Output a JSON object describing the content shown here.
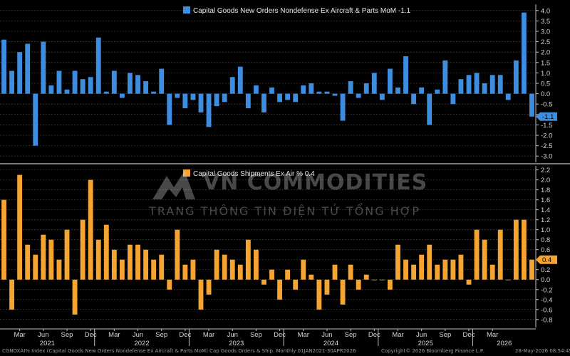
{
  "colors": {
    "background": "#000000",
    "top_series": "#3d8de0",
    "bottom_series": "#f5a431",
    "grid": "#3c3c3c",
    "text": "#d8d8d8"
  },
  "watermark": {
    "title": "VN COMMODITIES",
    "subtitle": "TRANG THÔNG TIN ĐIỆN TỬ TỔNG HỢP"
  },
  "footer": {
    "left": "CGNOXAI% Index (Capital Goods New Orders Nondefense Ex Aircraft & Parts MoM) Cap Goods Orders & Ship. Monthly 01JAN2021-30APR2026",
    "copyright": "Copyright© 2026 Bloomberg Finance L.P.",
    "timestamp": "28-May-2026 08:54:45"
  },
  "chart_data": {
    "type": "bar",
    "x_month_labels": [
      "Mar",
      "Jun",
      "Sep",
      "Dec",
      "Mar",
      "Jun",
      "Sep",
      "Dec",
      "Mar",
      "Jun",
      "Sep",
      "Dec",
      "Mar",
      "Jun",
      "Sep",
      "Dec",
      "Mar",
      "Jun",
      "Sep",
      "Dec",
      "Mar"
    ],
    "x_year_labels": [
      "2021",
      "2022",
      "2023",
      "2024",
      "2025",
      "2026"
    ],
    "panels": [
      {
        "series_name": "Capital Goods New Orders Nondefense Ex Aircraft & Parts MoM",
        "last_value_label": "-1.1",
        "badge_label": "-1.1",
        "ylim": [
          -3.3,
          4.3
        ],
        "yticks": [
          "4.0",
          "3.5",
          "3.0",
          "2.5",
          "2.0",
          "1.5",
          "1.0",
          "0.5",
          "0.0",
          "-0.5",
          "-1.0",
          "-1.5",
          "-2.0",
          "-2.5",
          "-3.0"
        ],
        "values": [
          2.6,
          1.1,
          2.0,
          2.4,
          -2.5,
          2.5,
          0.4,
          1.1,
          0.2,
          1.1,
          0.7,
          0.8,
          2.7,
          0.1,
          1.1,
          -0.2,
          1.0,
          0.9,
          0.6,
          0.1,
          1.2,
          -1.5,
          -0.2,
          -0.7,
          -0.3,
          -0.9,
          -1.6,
          -0.6,
          -0.4,
          0.8,
          1.3,
          -0.7,
          0.4,
          -0.9,
          0.3,
          -0.4,
          -0.3,
          -0.4,
          0.4,
          0.5,
          0.1,
          0.1,
          -0.1,
          -1.3,
          0.6,
          -0.2,
          0.5,
          1.0,
          -0.3,
          1.2,
          0.3,
          1.8,
          -0.5,
          0.3,
          -1.5,
          0.2,
          1.6,
          -0.5,
          0.7,
          0.9,
          1.0,
          0.5,
          0.9,
          0.9,
          -0.3,
          1.6,
          3.9,
          -1.1
        ]
      },
      {
        "series_name": "Capital Goods Shipments Ex Air %",
        "last_value_label": "0.4",
        "badge_label": "0.4",
        "ylim": [
          -0.96,
          2.28
        ],
        "yticks": [
          "2.2",
          "2.0",
          "1.8",
          "1.6",
          "1.4",
          "1.2",
          "1.0",
          "0.8",
          "0.6",
          "0.4",
          "0.2",
          "0.0",
          "-0.2",
          "-0.4",
          "-0.6",
          "-0.8"
        ],
        "values": [
          1.6,
          -0.6,
          2.1,
          0.7,
          0.5,
          0.9,
          0.8,
          0.4,
          1.0,
          -0.7,
          1.2,
          2.0,
          0.8,
          1.1,
          0.6,
          0.4,
          0.7,
          0.7,
          0.6,
          0.4,
          0.5,
          -0.2,
          1.0,
          0.3,
          0.4,
          -0.6,
          -0.3,
          0.6,
          0.5,
          0.4,
          0.3,
          0.8,
          0.6,
          -0.1,
          0.2,
          -0.4,
          0.2,
          -0.2,
          0.4,
          0.1,
          -0.6,
          -0.3,
          0.3,
          -0.5,
          0.3,
          -0.2,
          0.1,
          0.0,
          0.0,
          -0.2,
          0.7,
          0.4,
          0.3,
          0.5,
          0.7,
          0.3,
          0.4,
          0.4,
          0.5,
          -0.1,
          1.0,
          0.8,
          0.3,
          1.0,
          0.0,
          1.2,
          1.2,
          0.4
        ]
      }
    ]
  }
}
